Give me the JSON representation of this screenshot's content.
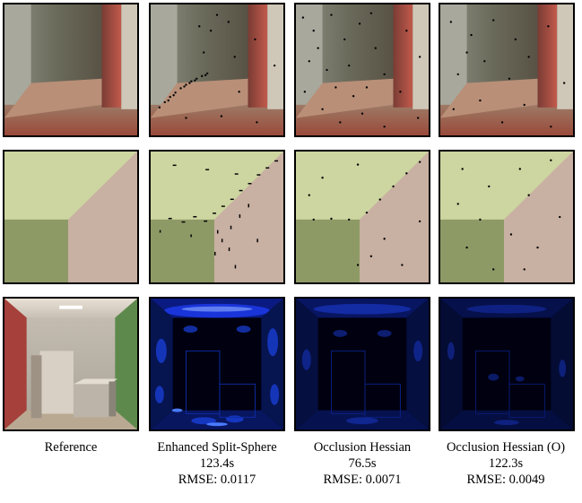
{
  "figure": {
    "columns": [
      {
        "name": "Reference",
        "time": "",
        "rmse": ""
      },
      {
        "name": "Enhanced Split-Sphere",
        "time": "123.4s",
        "rmse": "RMSE: 0.0117"
      },
      {
        "name": "Occlusion Hessian",
        "time": "76.5s",
        "rmse": "RMSE: 0.0071"
      },
      {
        "name": "Occlusion Hessian (O)",
        "time": "122.3s",
        "rmse": "RMSE: 0.0049"
      }
    ],
    "rows": [
      "corner crop close-up",
      "ceiling corner close-up",
      "full scene / error maps"
    ],
    "colors": {
      "red_wall": "#a5403a",
      "green_wall": "#7a8e5a",
      "white_wall": "#c9c1b4",
      "error_base": "#000010",
      "error_hot": "#1e4cff"
    }
  }
}
